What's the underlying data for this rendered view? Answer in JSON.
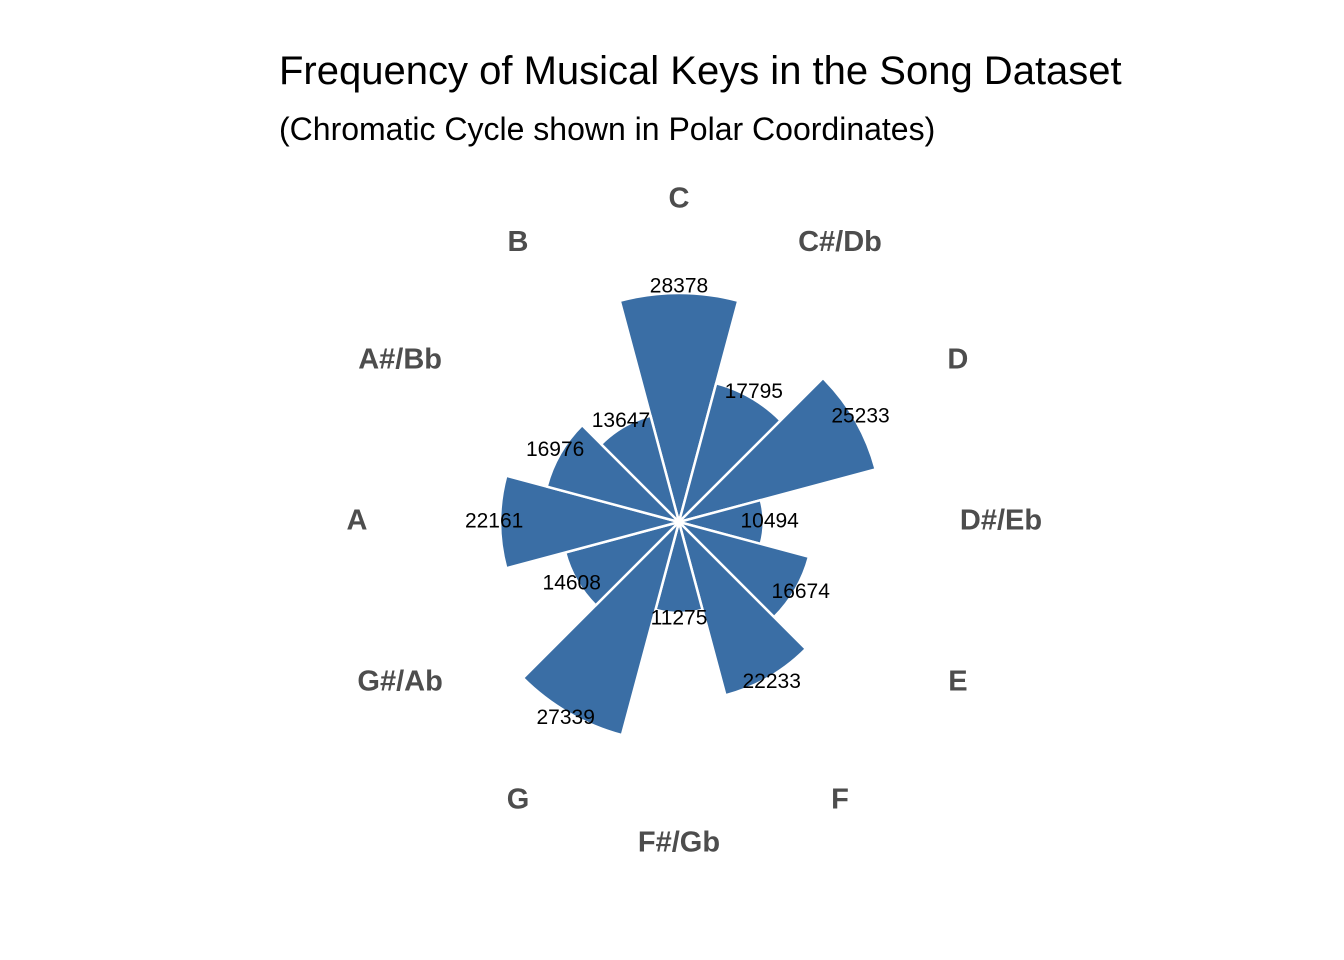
{
  "chart_data": {
    "type": "bar",
    "coordinate_system": "polar",
    "title": "Frequency of Musical Keys in the Song Dataset",
    "subtitle": "(Chromatic Cycle shown in Polar Coordinates)",
    "categories": [
      "C",
      "C#/Db",
      "D",
      "D#/Eb",
      "E",
      "F",
      "F#/Gb",
      "G",
      "G#/Ab",
      "A",
      "A#/Bb",
      "B"
    ],
    "values": [
      28378,
      17795,
      25233,
      10494,
      16674,
      22233,
      11275,
      27339,
      14608,
      22161,
      16976,
      13647
    ],
    "data_labels": [
      "28378",
      "17795",
      "25233",
      "10494",
      "16674",
      "22233",
      "11275",
      "27339",
      "14608",
      "22161",
      "16976",
      "13647"
    ],
    "colors": {
      "bar_fill": "#3a6ea5",
      "bar_stroke": "#ffffff",
      "key_label": "#4d4d4d",
      "value_label": "#000000"
    },
    "grid": false,
    "legend": "none",
    "start_direction": "top",
    "direction": "clockwise"
  }
}
